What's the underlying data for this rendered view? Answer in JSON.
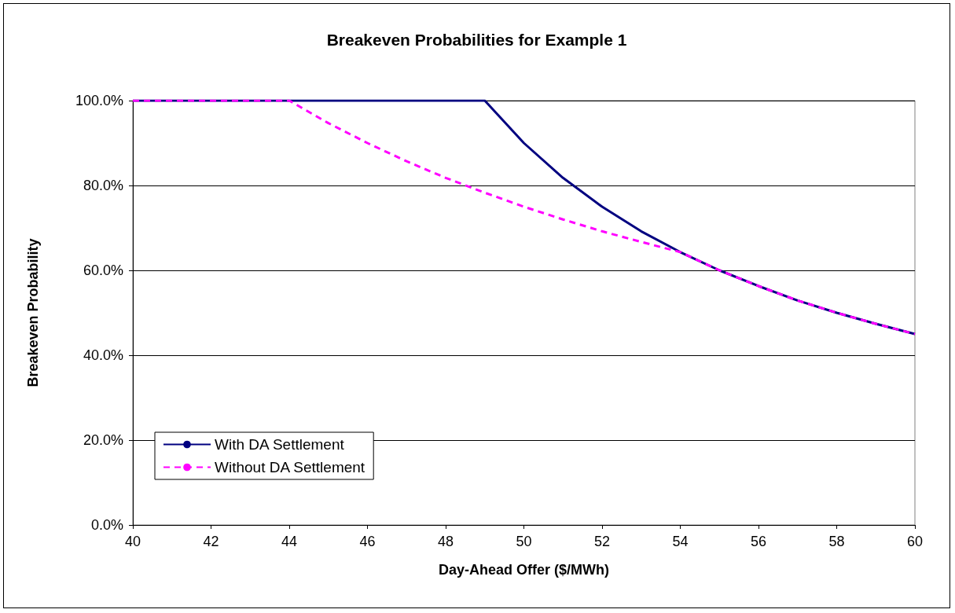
{
  "chart_data": {
    "type": "line",
    "title": "Breakeven Probabilities for Example 1",
    "xlabel": "Day-Ahead Offer ($/MWh)",
    "ylabel": "Breakeven Probability",
    "x": [
      40,
      41,
      42,
      43,
      44,
      45,
      46,
      47,
      48,
      49,
      50,
      51,
      52,
      53,
      54,
      55,
      56,
      57,
      58,
      59,
      60
    ],
    "series": [
      {
        "name": "With DA Settlement",
        "color": "#000080",
        "line_style": "solid",
        "values": [
          100,
          100,
          100,
          100,
          100,
          100,
          100,
          100,
          100,
          100,
          90,
          81.8,
          75,
          69.2,
          64.3,
          60,
          56.3,
          52.9,
          50,
          47.4,
          45
        ]
      },
      {
        "name": "Without DA Settlement",
        "color": "#ff00ff",
        "line_style": "dashed",
        "values": [
          100,
          100,
          100,
          100,
          100,
          94.7,
          90,
          85.7,
          81.8,
          78.3,
          75,
          72,
          69.2,
          66.7,
          64.3,
          60,
          56.3,
          52.9,
          50,
          47.4,
          45
        ]
      }
    ],
    "xlim": [
      40,
      60
    ],
    "xticks": [
      40,
      42,
      44,
      46,
      48,
      50,
      52,
      54,
      56,
      58,
      60
    ],
    "ylim": [
      0,
      100
    ],
    "yticks": [
      {
        "value": 0,
        "label": "0.0%"
      },
      {
        "value": 20,
        "label": "20.0%"
      },
      {
        "value": 40,
        "label": "40.0%"
      },
      {
        "value": 60,
        "label": "60.0%"
      },
      {
        "value": 80,
        "label": "80.0%"
      },
      {
        "value": 100,
        "label": "100.0%"
      }
    ],
    "grid": "y",
    "legend": "bottom left",
    "marker": "none"
  }
}
